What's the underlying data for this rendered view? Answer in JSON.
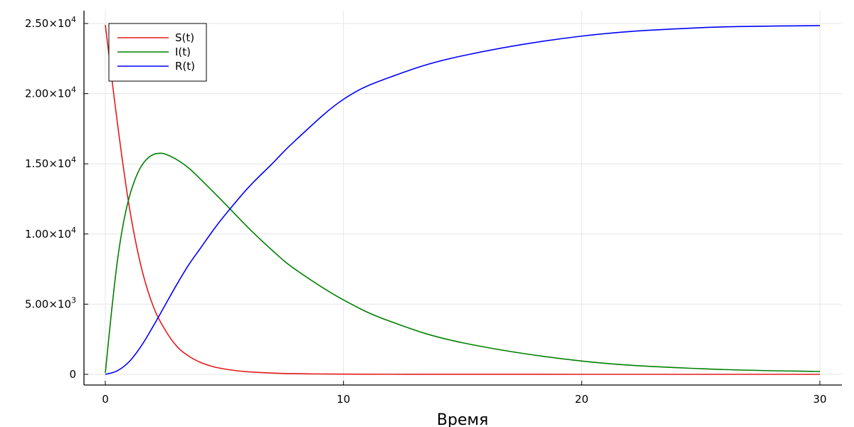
{
  "chart_data": {
    "type": "line",
    "title": "",
    "xlabel": "Время",
    "ylabel": "",
    "xlim": [
      0,
      30
    ],
    "ylim": [
      0,
      25000
    ],
    "x_ticks": [
      0,
      10,
      20,
      30
    ],
    "x_tick_labels": [
      "0",
      "10",
      "20",
      "30"
    ],
    "y_ticks": [
      0,
      5000,
      10000,
      15000,
      20000,
      25000
    ],
    "y_tick_labels": [
      {
        "mantissa": "0",
        "exponent": ""
      },
      {
        "mantissa": "5.00×10",
        "exponent": "3"
      },
      {
        "mantissa": "1.00×10",
        "exponent": "4"
      },
      {
        "mantissa": "1.50×10",
        "exponent": "4"
      },
      {
        "mantissa": "2.00×10",
        "exponent": "4"
      },
      {
        "mantissa": "2.50×10",
        "exponent": "4"
      }
    ],
    "grid": true,
    "legend_position": "top-left",
    "series": [
      {
        "name": "S(t)",
        "color": "#e41a1c",
        "x": [
          0,
          0.5,
          1,
          1.5,
          2,
          2.5,
          3,
          3.5,
          4,
          4.5,
          5,
          5.5,
          6,
          7,
          8,
          9,
          10,
          12,
          15,
          20,
          25,
          30
        ],
        "y": [
          24900,
          18000,
          12000,
          7700,
          4900,
          3200,
          2000,
          1300,
          850,
          560,
          380,
          260,
          180,
          90,
          45,
          25,
          15,
          6,
          2,
          0,
          0,
          0
        ]
      },
      {
        "name": "I(t)",
        "color": "#008000",
        "x": [
          0,
          0.25,
          0.5,
          0.75,
          1,
          1.25,
          1.5,
          1.75,
          2,
          2.25,
          2.5,
          3,
          3.5,
          4,
          5,
          6,
          7,
          8,
          10,
          12,
          15,
          20,
          25,
          30
        ],
        "y": [
          100,
          4300,
          8000,
          10700,
          12600,
          13900,
          14800,
          15350,
          15650,
          15750,
          15700,
          15300,
          14700,
          13900,
          12200,
          10450,
          8850,
          7450,
          5300,
          3750,
          2250,
          950,
          400,
          200
        ]
      },
      {
        "name": "R(t)",
        "color": "#0000ff",
        "x": [
          0,
          0.5,
          1,
          1.5,
          2,
          2.5,
          3,
          3.5,
          4,
          4.5,
          5,
          6,
          7,
          8,
          10,
          12,
          15,
          20,
          25,
          30
        ],
        "y": [
          0,
          250,
          900,
          2000,
          3400,
          4900,
          6400,
          7800,
          9000,
          10200,
          11300,
          13300,
          15000,
          16700,
          19600,
          21200,
          22700,
          24100,
          24700,
          24850
        ]
      }
    ]
  }
}
